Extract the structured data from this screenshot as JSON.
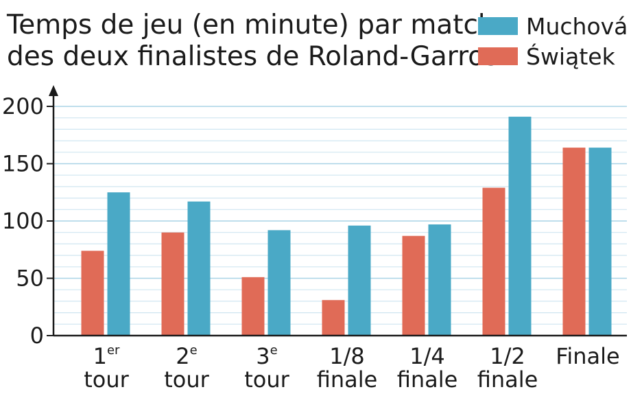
{
  "title_lines": [
    "Temps de jeu (en minute) par match",
    "des deux finalistes de Roland-Garros"
  ],
  "legend": [
    {
      "label": "Muchová",
      "color": "#4aa9c6"
    },
    {
      "label": "Świątek",
      "color": "#e06b57"
    }
  ],
  "chart_data": {
    "type": "bar",
    "title": "Temps de jeu (en minute) par match des deux finalistes de Roland-Garros",
    "categories": [
      {
        "lines": [
          {
            "main": "1",
            "sup": "er"
          },
          {
            "main": "tour",
            "sup": ""
          }
        ]
      },
      {
        "lines": [
          {
            "main": "2",
            "sup": "e"
          },
          {
            "main": "tour",
            "sup": ""
          }
        ]
      },
      {
        "lines": [
          {
            "main": "3",
            "sup": "e"
          },
          {
            "main": "tour",
            "sup": ""
          }
        ]
      },
      {
        "lines": [
          {
            "main": "1/8",
            "sup": ""
          },
          {
            "main": "finale",
            "sup": ""
          }
        ]
      },
      {
        "lines": [
          {
            "main": "1/4",
            "sup": ""
          },
          {
            "main": "finale",
            "sup": ""
          }
        ]
      },
      {
        "lines": [
          {
            "main": "1/2",
            "sup": ""
          },
          {
            "main": "finale",
            "sup": ""
          }
        ]
      },
      {
        "lines": [
          {
            "main": "Finale",
            "sup": ""
          }
        ]
      }
    ],
    "series": [
      {
        "name": "Świątek",
        "color": "#e06b57",
        "values": [
          74,
          90,
          51,
          31,
          87,
          129,
          164
        ]
      },
      {
        "name": "Muchová",
        "color": "#4aa9c6",
        "values": [
          125,
          117,
          92,
          96,
          97,
          191,
          164
        ]
      }
    ],
    "ylim": [
      0,
      200
    ],
    "yticks": [
      0,
      50,
      100,
      150,
      200
    ],
    "minor_grid_step": 10,
    "grid": true,
    "legend_position": "top-right"
  }
}
